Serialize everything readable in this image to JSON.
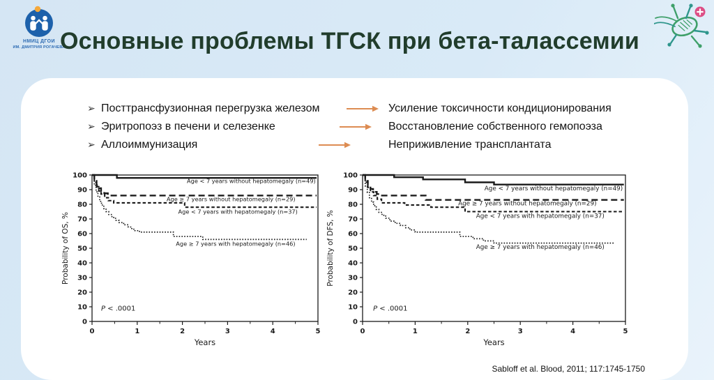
{
  "header": {
    "logo": {
      "line1": "НМИЦ ДГОИ",
      "line2": "ИМ. ДМИТРИЯ РОГАЧЕВА"
    },
    "title": "Основные проблемы ТГСК при бета-талассемии",
    "decor_icon": "cell-dna-icon",
    "plus_badge": "+"
  },
  "colors": {
    "background": "#d8e9f6",
    "card": "#ffffff",
    "title": "#213d2c",
    "arrow": "#dd8c52",
    "logo_blue": "#1d61ab",
    "icon_green": "#3fa06a",
    "icon_teal": "#2e968c",
    "badge_pink": "#dd4f86",
    "chart_line": "#1a1a1a"
  },
  "bullets": {
    "marker": "➢",
    "items": [
      {
        "left": "Посттрансфузионная перегрузка железом",
        "right": "Усиление токсичности кондиционирования"
      },
      {
        "left": "Эритропоэз в печени и селезенке",
        "right": "Восстановление собственного гемопоэза"
      },
      {
        "left": "Аллоиммунизация",
        "right": "Неприживление трансплантата"
      }
    ]
  },
  "citation": "Sabloff et al. Blood, 2011; 117:1745-1750",
  "chart_data": [
    {
      "type": "line",
      "subtype": "kaplan_meier_step",
      "title": "",
      "xlabel": "Years",
      "ylabel": "Probability of OS, %",
      "xlim": [
        0,
        5
      ],
      "ylim": [
        0,
        100
      ],
      "xticks": [
        0,
        1,
        2,
        3,
        4,
        5
      ],
      "xminor": [
        0.5,
        1.5,
        2.5,
        3.5,
        4.5
      ],
      "yticks": [
        0,
        10,
        20,
        30,
        40,
        50,
        60,
        70,
        80,
        90,
        100
      ],
      "grid": false,
      "annotation": "P < .0001",
      "annotation_pos": [
        0.2,
        7.5
      ],
      "legend_position": "labels-on-curves",
      "series": [
        {
          "name": "Age < 7 years without hepatomegaly (n=49)",
          "dash": "solid",
          "steps": [
            [
              0,
              100
            ],
            [
              0.55,
              98
            ],
            [
              4.97,
              98
            ]
          ],
          "label_pos": [
            4.95,
            94.6
          ]
        },
        {
          "name": "Age ≥ 7 years without hepatomegaly (n=29)",
          "dash": "long-dash",
          "steps": [
            [
              0,
              100
            ],
            [
              0.05,
              96
            ],
            [
              0.1,
              93
            ],
            [
              0.15,
              91
            ],
            [
              0.2,
              89
            ],
            [
              0.27,
              87.5
            ],
            [
              0.35,
              86
            ],
            [
              4.97,
              86
            ]
          ],
          "label_pos": [
            4.5,
            82.2
          ]
        },
        {
          "name": "Age < 7 years with hepatomegaly (n=37)",
          "dash": "dash",
          "steps": [
            [
              0,
              100
            ],
            [
              0.05,
              95
            ],
            [
              0.1,
              92
            ],
            [
              0.15,
              89
            ],
            [
              0.2,
              87
            ],
            [
              0.28,
              84.5
            ],
            [
              0.36,
              82.5
            ],
            [
              0.48,
              81
            ],
            [
              2.05,
              78
            ],
            [
              4.97,
              78
            ]
          ],
          "label_pos": [
            4.55,
            73.6
          ]
        },
        {
          "name": "Age ≥ 7 years with hepatomegaly (n=46)",
          "dash": "dotted",
          "steps": [
            [
              0,
              100
            ],
            [
              0.05,
              93
            ],
            [
              0.09,
              88.5
            ],
            [
              0.13,
              85
            ],
            [
              0.17,
              82
            ],
            [
              0.21,
              79.5
            ],
            [
              0.26,
              77
            ],
            [
              0.31,
              75
            ],
            [
              0.37,
              73
            ],
            [
              0.44,
              71
            ],
            [
              0.52,
              69
            ],
            [
              0.6,
              67.5
            ],
            [
              0.7,
              66
            ],
            [
              0.8,
              64.5
            ],
            [
              0.88,
              63
            ],
            [
              0.95,
              62
            ],
            [
              1.05,
              61
            ],
            [
              1.8,
              58
            ],
            [
              2.45,
              56
            ],
            [
              4.75,
              56
            ]
          ],
          "label_pos": [
            4.5,
            51.6
          ]
        }
      ]
    },
    {
      "type": "line",
      "subtype": "kaplan_meier_step",
      "title": "",
      "xlabel": "Years",
      "ylabel": "Probability of DFS, %",
      "xlim": [
        0,
        5
      ],
      "ylim": [
        0,
        100
      ],
      "xticks": [
        0,
        1,
        2,
        3,
        4,
        5
      ],
      "xminor": [
        0.5,
        1.5,
        2.5,
        3.5,
        4.5
      ],
      "yticks": [
        0,
        10,
        20,
        30,
        40,
        50,
        60,
        70,
        80,
        90,
        100
      ],
      "grid": false,
      "annotation": "P < .0001",
      "annotation_pos": [
        0.2,
        7.5
      ],
      "legend_position": "labels-on-curves",
      "series": [
        {
          "name": "Age < 7 years without hepatomegaly (n=49)",
          "dash": "solid",
          "steps": [
            [
              0,
              100
            ],
            [
              0.6,
              98.5
            ],
            [
              1.15,
              97
            ],
            [
              1.95,
              95
            ],
            [
              2.5,
              93.5
            ],
            [
              4.97,
              93.5
            ]
          ],
          "label_pos": [
            4.95,
            89.6
          ]
        },
        {
          "name": "Age ≥ 7 years without hepatomegaly (n=29)",
          "dash": "long-dash",
          "steps": [
            [
              0,
              100
            ],
            [
              0.05,
              96
            ],
            [
              0.1,
              93
            ],
            [
              0.15,
              90.5
            ],
            [
              0.2,
              88.5
            ],
            [
              0.27,
              87
            ],
            [
              0.35,
              86
            ],
            [
              1.2,
              83
            ],
            [
              4.97,
              83
            ]
          ],
          "label_pos": [
            4.45,
            79.2
          ]
        },
        {
          "name": "Age < 7 years with hepatomegaly (n=37)",
          "dash": "dash",
          "steps": [
            [
              0,
              100
            ],
            [
              0.05,
              95
            ],
            [
              0.1,
              91.5
            ],
            [
              0.15,
              88.5
            ],
            [
              0.21,
              86
            ],
            [
              0.28,
              83.5
            ],
            [
              0.36,
              81
            ],
            [
              0.8,
              79.5
            ],
            [
              1.3,
              78
            ],
            [
              1.95,
              75
            ],
            [
              4.97,
              75
            ]
          ],
          "label_pos": [
            4.6,
            70.8
          ]
        },
        {
          "name": "Age ≥ 7 years with hepatomegaly (n=46)",
          "dash": "dotted",
          "steps": [
            [
              0,
              100
            ],
            [
              0.05,
              92.5
            ],
            [
              0.09,
              88
            ],
            [
              0.13,
              84.5
            ],
            [
              0.17,
              81.5
            ],
            [
              0.21,
              79
            ],
            [
              0.26,
              76.5
            ],
            [
              0.31,
              74.5
            ],
            [
              0.37,
              72.5
            ],
            [
              0.44,
              70.5
            ],
            [
              0.52,
              68.5
            ],
            [
              0.62,
              67
            ],
            [
              0.72,
              65.5
            ],
            [
              0.82,
              64
            ],
            [
              0.9,
              62.5
            ],
            [
              1,
              61
            ],
            [
              1.85,
              58
            ],
            [
              2.1,
              56.5
            ],
            [
              2.3,
              55
            ],
            [
              2.5,
              53.5
            ],
            [
              4.8,
              53.5
            ]
          ],
          "label_pos": [
            4.6,
            49.6
          ]
        }
      ]
    }
  ]
}
